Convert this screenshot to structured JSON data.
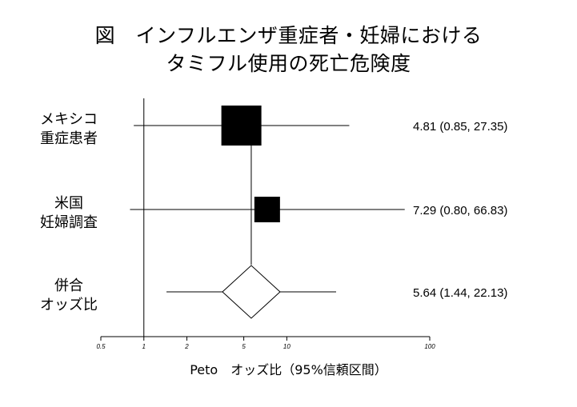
{
  "chart_data": {
    "type": "forest",
    "title_lines": [
      "図　インフルエンザ重症者・妊婦における",
      "タミフル使用の死亡危険度"
    ],
    "xlabel": "Peto　オッズ比（95%信頼区間）",
    "x_scale": "log",
    "xlim": [
      0.5,
      100
    ],
    "x_ticks": [
      {
        "value": 0.5,
        "label": "0.5"
      },
      {
        "value": 1,
        "label": "1"
      },
      {
        "value": 2,
        "label": "2"
      },
      {
        "value": 5,
        "label": "5"
      },
      {
        "value": 10,
        "label": "10"
      },
      {
        "value": 100,
        "label": "100"
      }
    ],
    "reference_line": 1,
    "rows": [
      {
        "label_lines": [
          "メキシコ",
          "重症患者"
        ],
        "estimate": 4.81,
        "ci": [
          0.85,
          27.35
        ],
        "marker": "square",
        "marker_size": "large",
        "ci_text": "4.81 (0.85, 27.35)"
      },
      {
        "label_lines": [
          "米国",
          "妊婦調査"
        ],
        "estimate": 7.29,
        "ci": [
          0.8,
          66.83
        ],
        "marker": "square",
        "marker_size": "small",
        "ci_text": "7.29  (0.80, 66.83)"
      },
      {
        "label_lines": [
          "併合",
          "オッズ比"
        ],
        "estimate": 5.64,
        "ci": [
          1.44,
          22.13
        ],
        "marker": "diamond",
        "ci_text": "5.64 (1.44, 22.13)"
      }
    ],
    "colors": {
      "marker_fill": "#000000",
      "line": "#000000",
      "diamond_fill": "#ffffff",
      "background": "#ffffff"
    }
  }
}
